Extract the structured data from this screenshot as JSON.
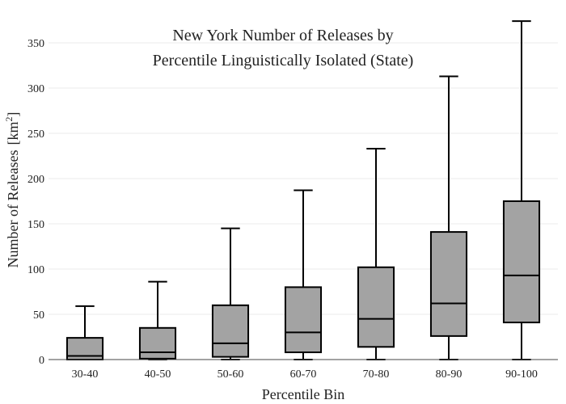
{
  "chart_data": {
    "type": "box",
    "title": [
      "New York Number of Releases by",
      "Percentile Linguistically Isolated (State)"
    ],
    "xlabel": "Percentile Bin",
    "ylabel": "Number of Releases",
    "ylabel_unit_base": "[km",
    "ylabel_unit_exp": "2",
    "ylabel_unit_close": "]",
    "ylim": [
      0,
      375
    ],
    "yticks": [
      "0",
      "50",
      "100",
      "150",
      "200",
      "250",
      "300",
      "350"
    ],
    "grid": true,
    "colors": {
      "box_fill": "#a3a3a3",
      "stroke": "#000000",
      "grid": "#ebebeb",
      "axis": "#444444"
    },
    "categories": [
      "30-40",
      "40-50",
      "50-60",
      "60-70",
      "70-80",
      "80-90",
      "90-100"
    ],
    "boxes": [
      {
        "min": 0,
        "q1": 0,
        "median": 4,
        "q3": 24,
        "max": 59
      },
      {
        "min": 0,
        "q1": 1,
        "median": 8,
        "q3": 35,
        "max": 86
      },
      {
        "min": 0,
        "q1": 3,
        "median": 18,
        "q3": 60,
        "max": 145
      },
      {
        "min": 0,
        "q1": 8,
        "median": 30,
        "q3": 80,
        "max": 187
      },
      {
        "min": 0,
        "q1": 14,
        "median": 45,
        "q3": 102,
        "max": 233
      },
      {
        "min": 0,
        "q1": 26,
        "median": 62,
        "q3": 141,
        "max": 313
      },
      {
        "min": 0,
        "q1": 41,
        "median": 93,
        "q3": 175,
        "max": 374
      }
    ]
  }
}
